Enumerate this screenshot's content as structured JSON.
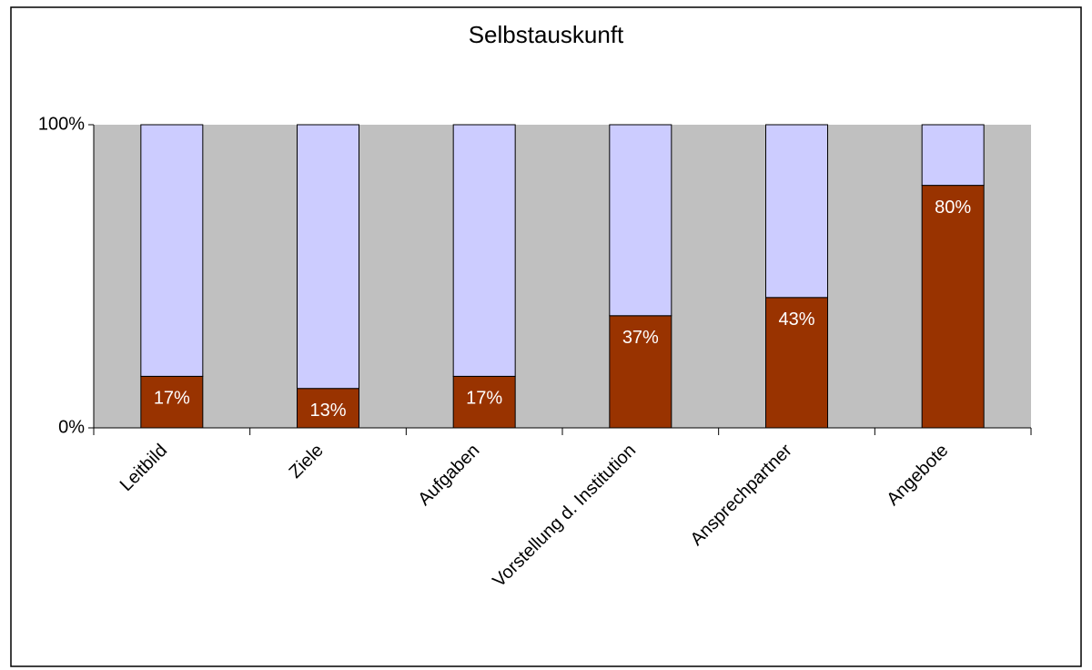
{
  "chart_data": {
    "type": "stacked_bar",
    "title": "Selbstauskunft",
    "categories": [
      "Leitbild",
      "Ziele",
      "Aufgaben",
      "Vorstellung d. Institution",
      "Ansprechpartner",
      "Angebote"
    ],
    "series": [
      {
        "color": "#993300",
        "values": [
          17,
          13,
          17,
          37,
          43,
          80
        ],
        "value_labels": [
          "17%",
          "13%",
          "17%",
          "37%",
          "43%",
          "80%"
        ]
      },
      {
        "color": "#ccccff",
        "values": [
          83,
          87,
          83,
          63,
          57,
          20
        ]
      }
    ],
    "ylim": [
      0,
      100
    ],
    "yticks": [
      {
        "value": 0,
        "label": "0%"
      },
      {
        "value": 100,
        "label": "100%"
      }
    ],
    "plot_background": "#c0c0c0"
  }
}
